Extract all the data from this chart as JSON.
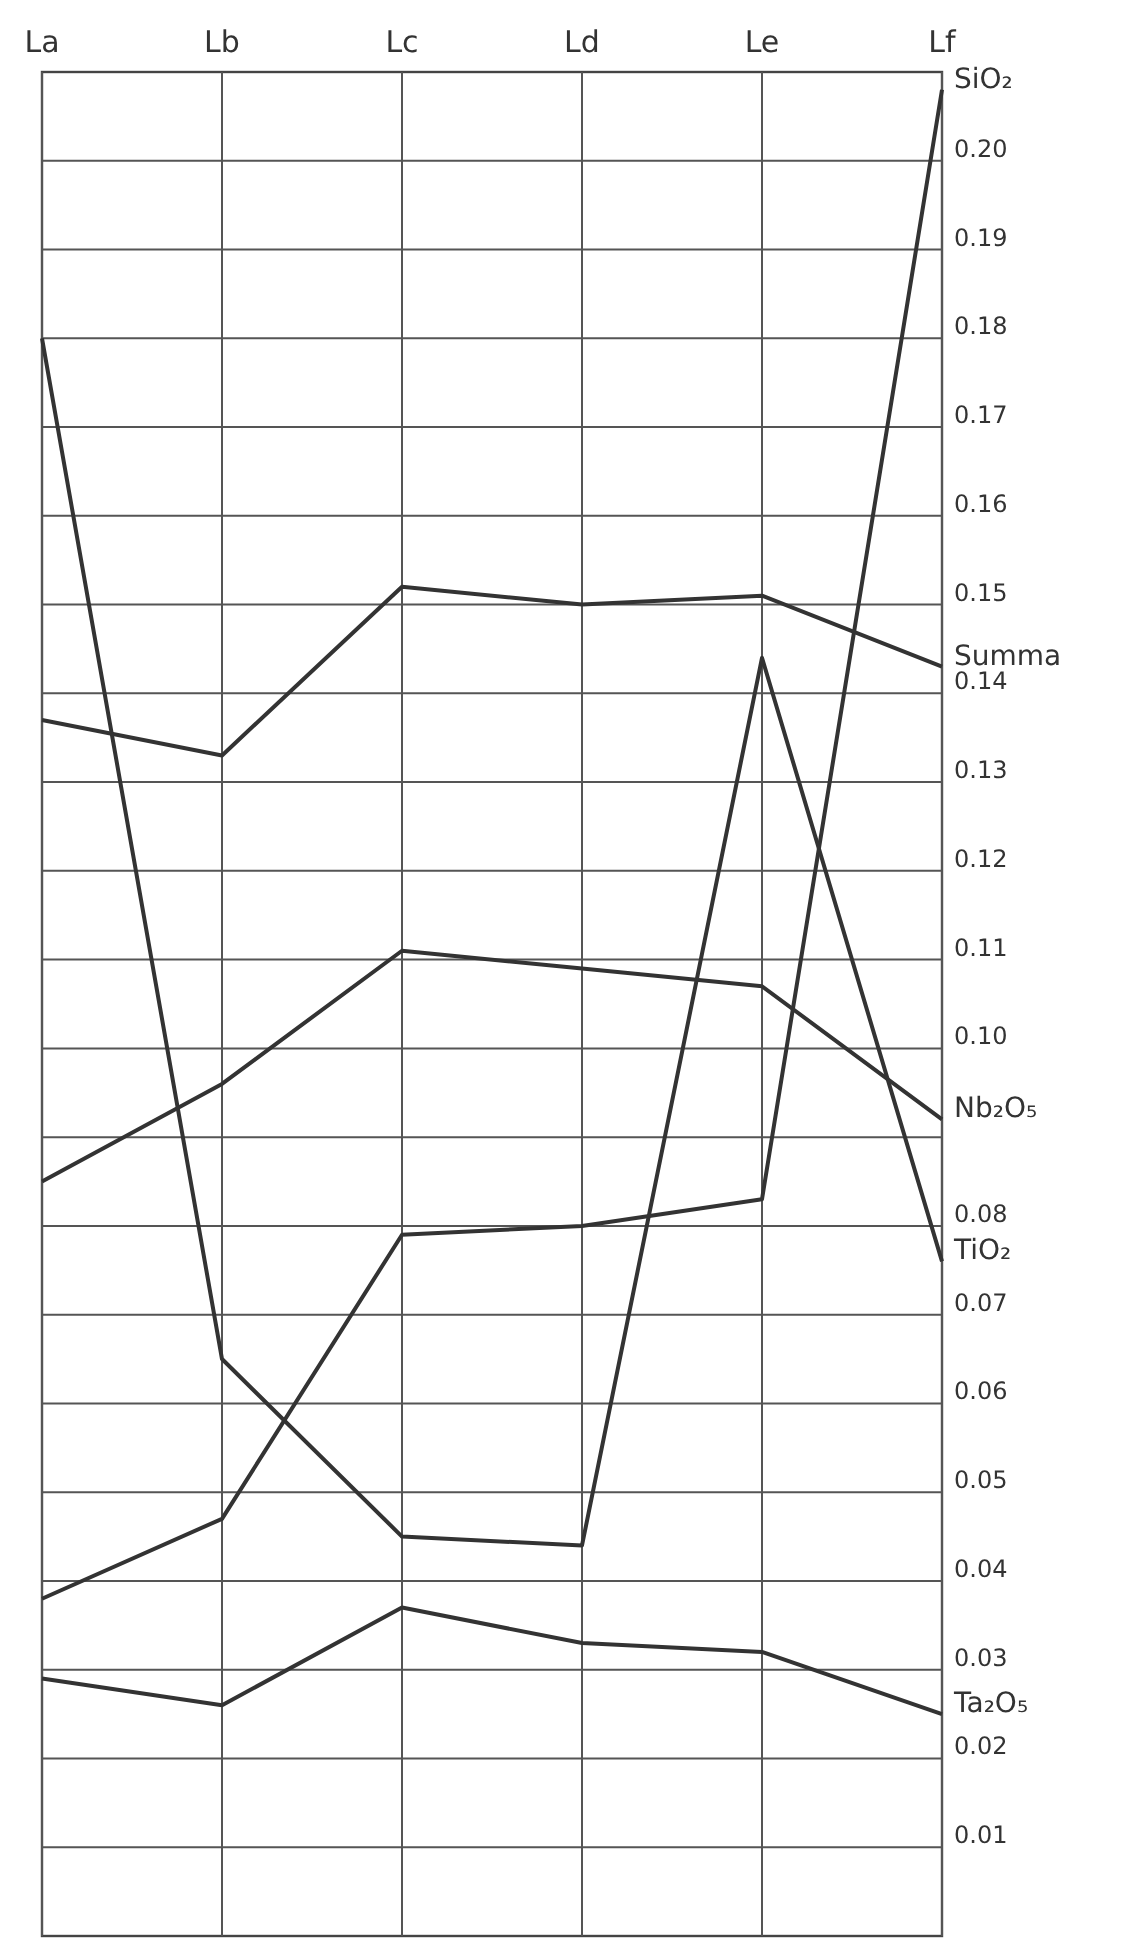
{
  "chart_data": {
    "type": "line",
    "categories": [
      "La",
      "Lb",
      "Lc",
      "Ld",
      "Le",
      "Lf"
    ],
    "series": [
      {
        "name": "SiO₂",
        "color": "#333333",
        "values": [
          0.038,
          0.047,
          0.079,
          0.08,
          0.083,
          0.208
        ]
      },
      {
        "name": "Summa",
        "color": "#333333",
        "values": [
          0.137,
          0.133,
          0.152,
          0.15,
          0.151,
          0.143
        ]
      },
      {
        "name": "Nb₂O₅",
        "color": "#333333",
        "values": [
          0.085,
          0.096,
          0.111,
          0.109,
          0.107,
          0.092
        ]
      },
      {
        "name": "TiO₂",
        "color": "#333333",
        "values": [
          0.18,
          0.065,
          0.045,
          0.044,
          0.144,
          0.076
        ]
      },
      {
        "name": "Ta₂O₅",
        "color": "#333333",
        "values": [
          0.029,
          0.026,
          0.037,
          0.033,
          0.032,
          0.025
        ]
      }
    ],
    "ylim": [
      0,
      0.21
    ],
    "yticks": [
      0.01,
      0.02,
      0.03,
      0.04,
      0.05,
      0.06,
      0.07,
      0.08,
      {
        "value": 0.09,
        "label": null
      },
      {
        "value": 0.1,
        "label": "0.10"
      },
      0.11,
      0.12,
      0.13,
      0.14,
      0.15,
      0.16,
      0.17,
      0.18,
      0.19,
      {
        "value": 0.2,
        "label": "0.20"
      }
    ],
    "grid": true,
    "marker": "none",
    "line_style": "solid"
  }
}
